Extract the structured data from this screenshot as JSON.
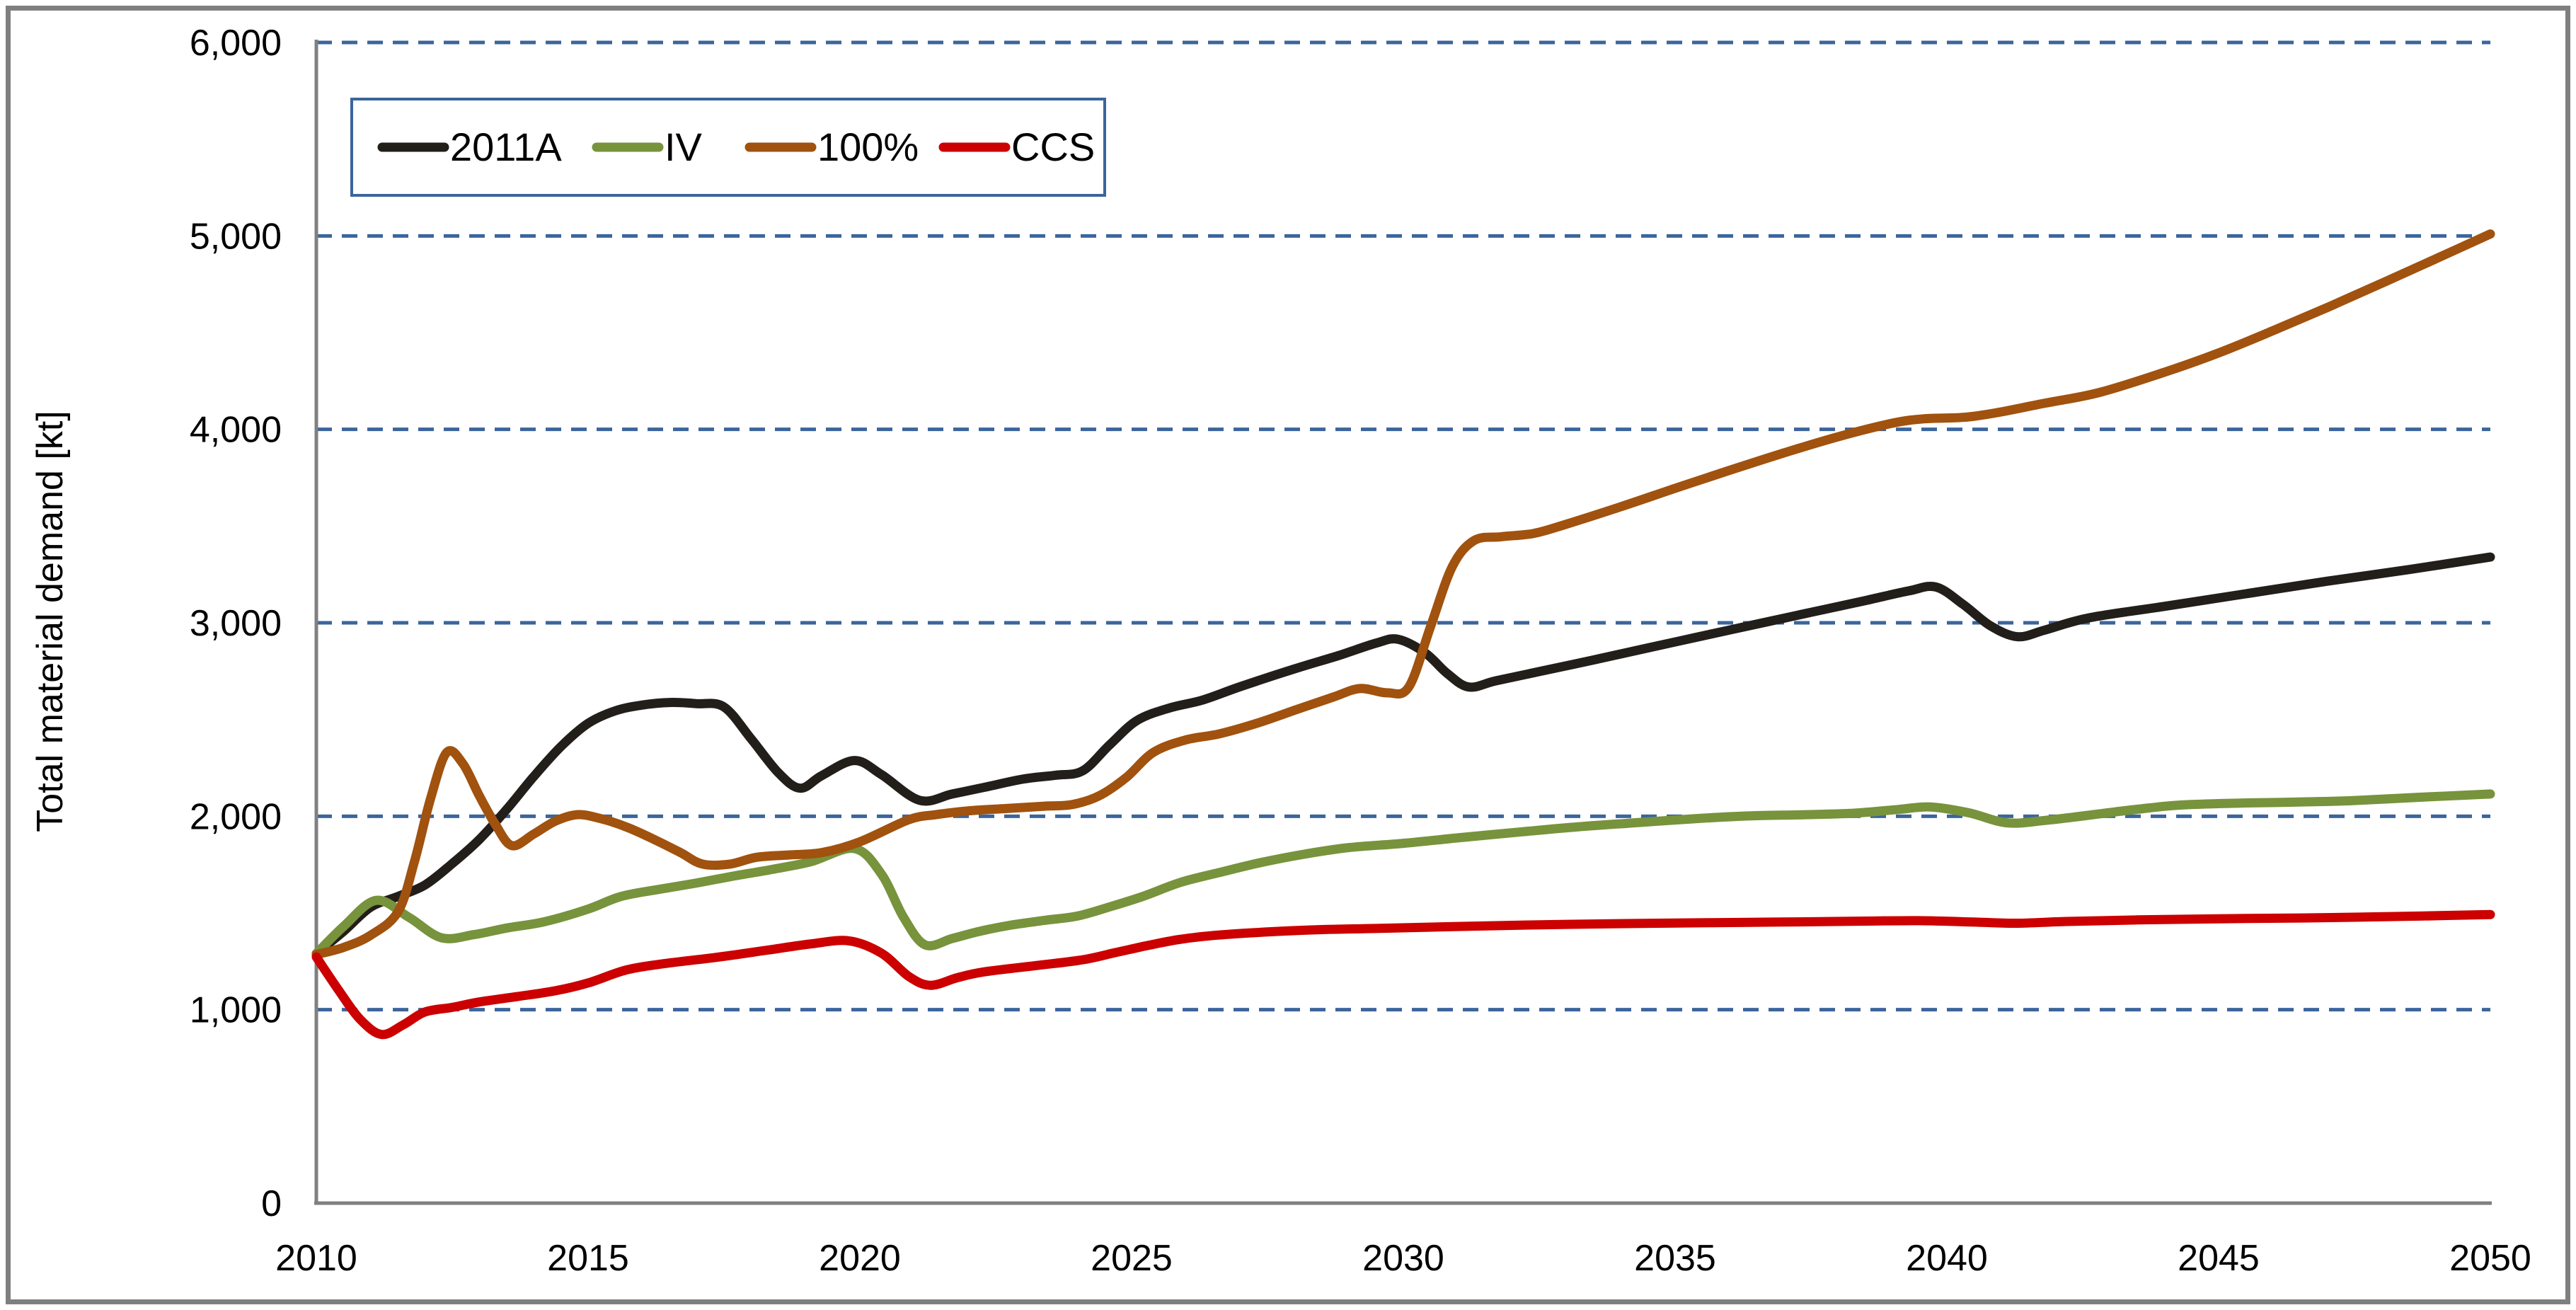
{
  "figure": {
    "background": "#ffffff",
    "outer_border_color": "#7f7f7f",
    "axis_color": "#808080"
  },
  "chart_data": {
    "type": "line",
    "title": "",
    "xlabel": "",
    "ylabel": "Total material demand [kt]",
    "x_range": [
      2010,
      2050
    ],
    "ylim": [
      0,
      6000
    ],
    "y_tick_interval": 1000,
    "y_tick_labels": [
      "0",
      "1,000",
      "2,000",
      "3,000",
      "4,000",
      "5,000",
      "6,000"
    ],
    "x_tick_labels": [
      "2010",
      "2015",
      "2020",
      "2025",
      "2030",
      "2035",
      "2040",
      "2045",
      "2050"
    ],
    "grid": {
      "visible": true,
      "style": "dashed",
      "color": "#3B659C",
      "orientation": "horizontal"
    },
    "legend": {
      "position": "top-left",
      "border_color": "#3B659C",
      "items": [
        "2011A",
        "IV",
        "100%",
        "CCS"
      ]
    },
    "series": [
      {
        "name": "2011A",
        "color": "#221E1A",
        "points": [
          [
            2010,
            1290
          ],
          [
            2010.5,
            1405
          ],
          [
            2011,
            1530
          ],
          [
            2011.5,
            1585
          ],
          [
            2012,
            1645
          ],
          [
            2012.5,
            1755
          ],
          [
            2013,
            1880
          ],
          [
            2013.5,
            2035
          ],
          [
            2014,
            2205
          ],
          [
            2014.5,
            2360
          ],
          [
            2015,
            2480
          ],
          [
            2015.5,
            2545
          ],
          [
            2016,
            2575
          ],
          [
            2016.5,
            2588
          ],
          [
            2017,
            2582
          ],
          [
            2017.5,
            2565
          ],
          [
            2018,
            2400
          ],
          [
            2018.5,
            2225
          ],
          [
            2018.9,
            2145
          ],
          [
            2019.3,
            2210
          ],
          [
            2019.9,
            2288
          ],
          [
            2020.4,
            2215
          ],
          [
            2021.1,
            2082
          ],
          [
            2021.7,
            2115
          ],
          [
            2022.3,
            2150
          ],
          [
            2023,
            2192
          ],
          [
            2023.6,
            2212
          ],
          [
            2024.1,
            2235
          ],
          [
            2024.6,
            2370
          ],
          [
            2025.1,
            2495
          ],
          [
            2025.7,
            2560
          ],
          [
            2026.3,
            2600
          ],
          [
            2027,
            2670
          ],
          [
            2028,
            2762
          ],
          [
            2028.8,
            2830
          ],
          [
            2029.5,
            2895
          ],
          [
            2029.9,
            2915
          ],
          [
            2030.4,
            2845
          ],
          [
            2030.8,
            2740
          ],
          [
            2031.2,
            2668
          ],
          [
            2031.7,
            2700
          ],
          [
            2032.5,
            2748
          ],
          [
            2033.5,
            2808
          ],
          [
            2034.5,
            2870
          ],
          [
            2035.5,
            2932
          ],
          [
            2036.5,
            2993
          ],
          [
            2037.5,
            3054
          ],
          [
            2038.5,
            3115
          ],
          [
            2039.3,
            3165
          ],
          [
            2039.8,
            3185
          ],
          [
            2040.3,
            3095
          ],
          [
            2040.8,
            2985
          ],
          [
            2041.3,
            2928
          ],
          [
            2041.8,
            2962
          ],
          [
            2042.6,
            3025
          ],
          [
            2044,
            3085
          ],
          [
            2045.5,
            3150
          ],
          [
            2047,
            3215
          ],
          [
            2048.5,
            3275
          ],
          [
            2050,
            3340
          ]
        ]
      },
      {
        "name": "IV",
        "color": "#77933C",
        "points": [
          [
            2010,
            1290
          ],
          [
            2010.5,
            1430
          ],
          [
            2011.1,
            1565
          ],
          [
            2011.7,
            1478
          ],
          [
            2012.3,
            1372
          ],
          [
            2012.9,
            1388
          ],
          [
            2013.5,
            1422
          ],
          [
            2014.2,
            1455
          ],
          [
            2015,
            1520
          ],
          [
            2015.6,
            1585
          ],
          [
            2016.3,
            1622
          ],
          [
            2017,
            1655
          ],
          [
            2017.7,
            1692
          ],
          [
            2018.4,
            1726
          ],
          [
            2019.1,
            1765
          ],
          [
            2019.9,
            1833
          ],
          [
            2020.4,
            1700
          ],
          [
            2020.8,
            1480
          ],
          [
            2021.2,
            1335
          ],
          [
            2021.7,
            1368
          ],
          [
            2022.2,
            1405
          ],
          [
            2022.8,
            1438
          ],
          [
            2023.4,
            1462
          ],
          [
            2024,
            1484
          ],
          [
            2024.6,
            1532
          ],
          [
            2025.2,
            1585
          ],
          [
            2025.9,
            1658
          ],
          [
            2026.6,
            1708
          ],
          [
            2027.4,
            1762
          ],
          [
            2028.2,
            1805
          ],
          [
            2029,
            1838
          ],
          [
            2030,
            1860
          ],
          [
            2031,
            1888
          ],
          [
            2032.2,
            1920
          ],
          [
            2033.2,
            1945
          ],
          [
            2034.3,
            1967
          ],
          [
            2035.4,
            1988
          ],
          [
            2036.4,
            2002
          ],
          [
            2037.4,
            2008
          ],
          [
            2038.3,
            2016
          ],
          [
            2039.1,
            2035
          ],
          [
            2039.7,
            2048
          ],
          [
            2040.4,
            2018
          ],
          [
            2041.1,
            1966
          ],
          [
            2041.8,
            1978
          ],
          [
            2042.6,
            2005
          ],
          [
            2043.5,
            2036
          ],
          [
            2044.3,
            2058
          ],
          [
            2045.4,
            2068
          ],
          [
            2046.4,
            2073
          ],
          [
            2047.4,
            2080
          ],
          [
            2048.7,
            2098
          ],
          [
            2050,
            2115
          ]
        ]
      },
      {
        "name": "100%",
        "color": "#A0520E",
        "points": [
          [
            2010,
            1285
          ],
          [
            2010.5,
            1322
          ],
          [
            2011,
            1385
          ],
          [
            2011.5,
            1505
          ],
          [
            2011.8,
            1760
          ],
          [
            2012.1,
            2090
          ],
          [
            2012.4,
            2330
          ],
          [
            2012.7,
            2270
          ],
          [
            2013,
            2105
          ],
          [
            2013.3,
            1955
          ],
          [
            2013.6,
            1848
          ],
          [
            2014,
            1908
          ],
          [
            2014.4,
            1975
          ],
          [
            2014.8,
            2008
          ],
          [
            2015.2,
            1990
          ],
          [
            2015.7,
            1945
          ],
          [
            2016.2,
            1882
          ],
          [
            2016.7,
            1812
          ],
          [
            2017.1,
            1753
          ],
          [
            2017.6,
            1752
          ],
          [
            2018.1,
            1788
          ],
          [
            2018.7,
            1800
          ],
          [
            2019.3,
            1812
          ],
          [
            2020,
            1868
          ],
          [
            2020.9,
            1982
          ],
          [
            2021.4,
            2008
          ],
          [
            2022,
            2028
          ],
          [
            2022.7,
            2040
          ],
          [
            2023.4,
            2052
          ],
          [
            2023.9,
            2060
          ],
          [
            2024.4,
            2105
          ],
          [
            2024.9,
            2200
          ],
          [
            2025.4,
            2330
          ],
          [
            2026,
            2395
          ],
          [
            2026.6,
            2425
          ],
          [
            2027.3,
            2480
          ],
          [
            2028,
            2548
          ],
          [
            2028.7,
            2615
          ],
          [
            2029.2,
            2660
          ],
          [
            2029.7,
            2638
          ],
          [
            2030.1,
            2668
          ],
          [
            2030.5,
            2980
          ],
          [
            2030.9,
            3290
          ],
          [
            2031.3,
            3425
          ],
          [
            2031.8,
            3445
          ],
          [
            2032.4,
            3462
          ],
          [
            2033,
            3510
          ],
          [
            2034,
            3600
          ],
          [
            2035,
            3695
          ],
          [
            2036,
            3788
          ],
          [
            2037,
            3878
          ],
          [
            2038,
            3962
          ],
          [
            2039,
            4032
          ],
          [
            2039.6,
            4055
          ],
          [
            2040.3,
            4062
          ],
          [
            2040.9,
            4085
          ],
          [
            2041.8,
            4135
          ],
          [
            2042.8,
            4190
          ],
          [
            2044,
            4295
          ],
          [
            2045,
            4395
          ],
          [
            2046,
            4510
          ],
          [
            2047,
            4630
          ],
          [
            2048,
            4755
          ],
          [
            2049,
            4882
          ],
          [
            2050,
            5010
          ]
        ]
      },
      {
        "name": "CCS",
        "color": "#CC0000",
        "points": [
          [
            2010,
            1272
          ],
          [
            2010.4,
            1105
          ],
          [
            2010.8,
            952
          ],
          [
            2011.2,
            872
          ],
          [
            2011.6,
            922
          ],
          [
            2012,
            988
          ],
          [
            2012.5,
            1012
          ],
          [
            2013,
            1040
          ],
          [
            2013.7,
            1068
          ],
          [
            2014.4,
            1098
          ],
          [
            2015,
            1138
          ],
          [
            2015.7,
            1205
          ],
          [
            2016.4,
            1238
          ],
          [
            2017.4,
            1272
          ],
          [
            2018.3,
            1308
          ],
          [
            2019.1,
            1340
          ],
          [
            2019.8,
            1356
          ],
          [
            2020.4,
            1292
          ],
          [
            2020.9,
            1172
          ],
          [
            2021.3,
            1126
          ],
          [
            2021.8,
            1166
          ],
          [
            2022.3,
            1196
          ],
          [
            2023.3,
            1230
          ],
          [
            2024.1,
            1258
          ],
          [
            2024.7,
            1295
          ],
          [
            2025.3,
            1332
          ],
          [
            2025.9,
            1364
          ],
          [
            2026.6,
            1386
          ],
          [
            2027.5,
            1402
          ],
          [
            2028.5,
            1414
          ],
          [
            2029.5,
            1420
          ],
          [
            2031,
            1430
          ],
          [
            2033,
            1441
          ],
          [
            2035,
            1448
          ],
          [
            2037,
            1453
          ],
          [
            2038.5,
            1458
          ],
          [
            2039.5,
            1460
          ],
          [
            2040.6,
            1452
          ],
          [
            2041.3,
            1447
          ],
          [
            2042.2,
            1456
          ],
          [
            2043.5,
            1464
          ],
          [
            2045,
            1470
          ],
          [
            2046.5,
            1474
          ],
          [
            2047.5,
            1478
          ],
          [
            2048.7,
            1484
          ],
          [
            2050,
            1492
          ]
        ]
      }
    ]
  }
}
